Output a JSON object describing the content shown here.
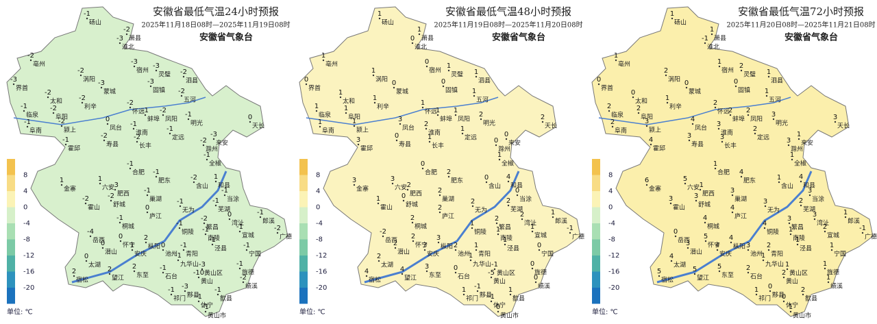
{
  "stations": [
    "砀山",
    "萧县",
    "淮北",
    "亳州",
    "涡阳",
    "宿州",
    "灵璧",
    "泗县",
    "界首",
    "太和",
    "蒙城",
    "固镇",
    "利辛",
    "五河",
    "临泉",
    "阜阳",
    "怀远",
    "蚌埠",
    "凤阳",
    "明光",
    "天长",
    "阜南",
    "颍上",
    "凤台",
    "淮南",
    "霍邱",
    "寿县",
    "长丰",
    "定远",
    "滁州",
    "来安",
    "全椒",
    "合肥",
    "肥东",
    "六安",
    "金寨",
    "含山",
    "和县",
    "肥西",
    "巢湖",
    "当涂",
    "舒城",
    "霍山",
    "芜湖",
    "庐江",
    "无为",
    "郎溪",
    "广德",
    "桐城",
    "繁昌",
    "湾沚",
    "岳西",
    "铜陵",
    "南陵",
    "宣城",
    "枞阳",
    "潜山",
    "怀宁",
    "安庆",
    "池州",
    "泾县",
    "宁国",
    "青阳",
    "九华山",
    "太湖",
    "宿松",
    "望江",
    "东至",
    "石台",
    "黄山区",
    "旌德",
    "绩溪",
    "黄山",
    "祁门",
    "黟县",
    "歙县",
    "休宁",
    "黄山市"
  ],
  "legend": {
    "ticks": [
      8,
      4,
      0,
      -4,
      -8,
      -12,
      -16,
      -20
    ],
    "colors": [
      "#f3c24e",
      "#f8dc85",
      "#fbf3b6",
      "#d6f0c9",
      "#a9dfb3",
      "#7ccaa6",
      "#4fb1a6",
      "#2d92bd",
      "#1b72bd"
    ],
    "unit": "单位: ℃"
  },
  "maps": [
    {
      "title": "安徽省最低气温24小时预报",
      "period": "2025年11月18日08时—2025年11月19日08时",
      "issuer": "安徽省气象台",
      "fill_color": "#d8f0cd",
      "values": [
        -1,
        -2,
        -3,
        -2,
        -2,
        -3,
        -3,
        -2,
        -3,
        -2,
        -3,
        -3,
        -2,
        -2,
        -1,
        -2,
        -2,
        -1,
        -2,
        -1,
        0,
        -1,
        -2,
        0,
        -1,
        -1,
        -2,
        -2,
        -1,
        -2,
        -3,
        -1,
        -1,
        -1,
        1,
        1,
        -2,
        1,
        -3,
        -1,
        -1,
        -2,
        -2,
        -1,
        0,
        -1,
        -1,
        -2,
        -1,
        -2,
        0,
        -4,
        -1,
        -1,
        -1,
        2,
        0,
        0,
        1,
        0,
        -1,
        -1,
        -1,
        -1,
        0,
        2,
        2,
        2,
        -1,
        -3,
        -1,
        -2,
        -10,
        -1,
        -3,
        -1,
        -1,
        -1
      ]
    },
    {
      "title": "安徽省最低气温48小时预报",
      "period": "2025年11月19日08时—2025年11月20日08时",
      "issuer": "安徽省气象台",
      "fill_color": "#fbf3bf",
      "values": [
        1,
        1,
        0,
        1,
        1,
        0,
        1,
        1,
        0,
        1,
        0,
        0,
        1,
        1,
        1,
        1,
        1,
        1,
        1,
        2,
        2,
        1,
        1,
        3,
        2,
        3,
        0,
        1,
        1,
        0,
        0,
        1,
        0,
        2,
        3,
        3,
        0,
        4,
        -2,
        2,
        0,
        0,
        1,
        2,
        2,
        2,
        1,
        -1,
        2,
        2,
        2,
        -2,
        1,
        1,
        1,
        3,
        2,
        2,
        3,
        2,
        1,
        0,
        1,
        1,
        2,
        4,
        4,
        3,
        0,
        -1,
        0,
        0,
        -5,
        1,
        -1,
        1,
        -1,
        0
      ]
    },
    {
      "title": "安徽省最低气温72小时预报",
      "period": "2025年11月20日08时—2025年11月21日08时",
      "issuer": "安徽省气象台",
      "fill_color": "#fbefac",
      "values": [
        1,
        1,
        -1,
        1,
        2,
        1,
        2,
        1,
        0,
        0,
        0,
        0,
        1,
        1,
        2,
        2,
        2,
        2,
        2,
        3,
        3,
        2,
        3,
        4,
        3,
        4,
        3,
        3,
        2,
        3,
        1,
        1,
        1,
        4,
        5,
        6,
        1,
        4,
        -1,
        3,
        3,
        3,
        3,
        2,
        4,
        3,
        1,
        -1,
        4,
        3,
        3,
        0,
        4,
        1,
        2,
        4,
        3,
        5,
        4,
        3,
        1,
        1,
        2,
        1,
        4,
        5,
        5,
        5,
        2,
        1,
        1,
        1,
        2,
        1,
        0,
        2,
        0,
        1
      ]
    }
  ]
}
